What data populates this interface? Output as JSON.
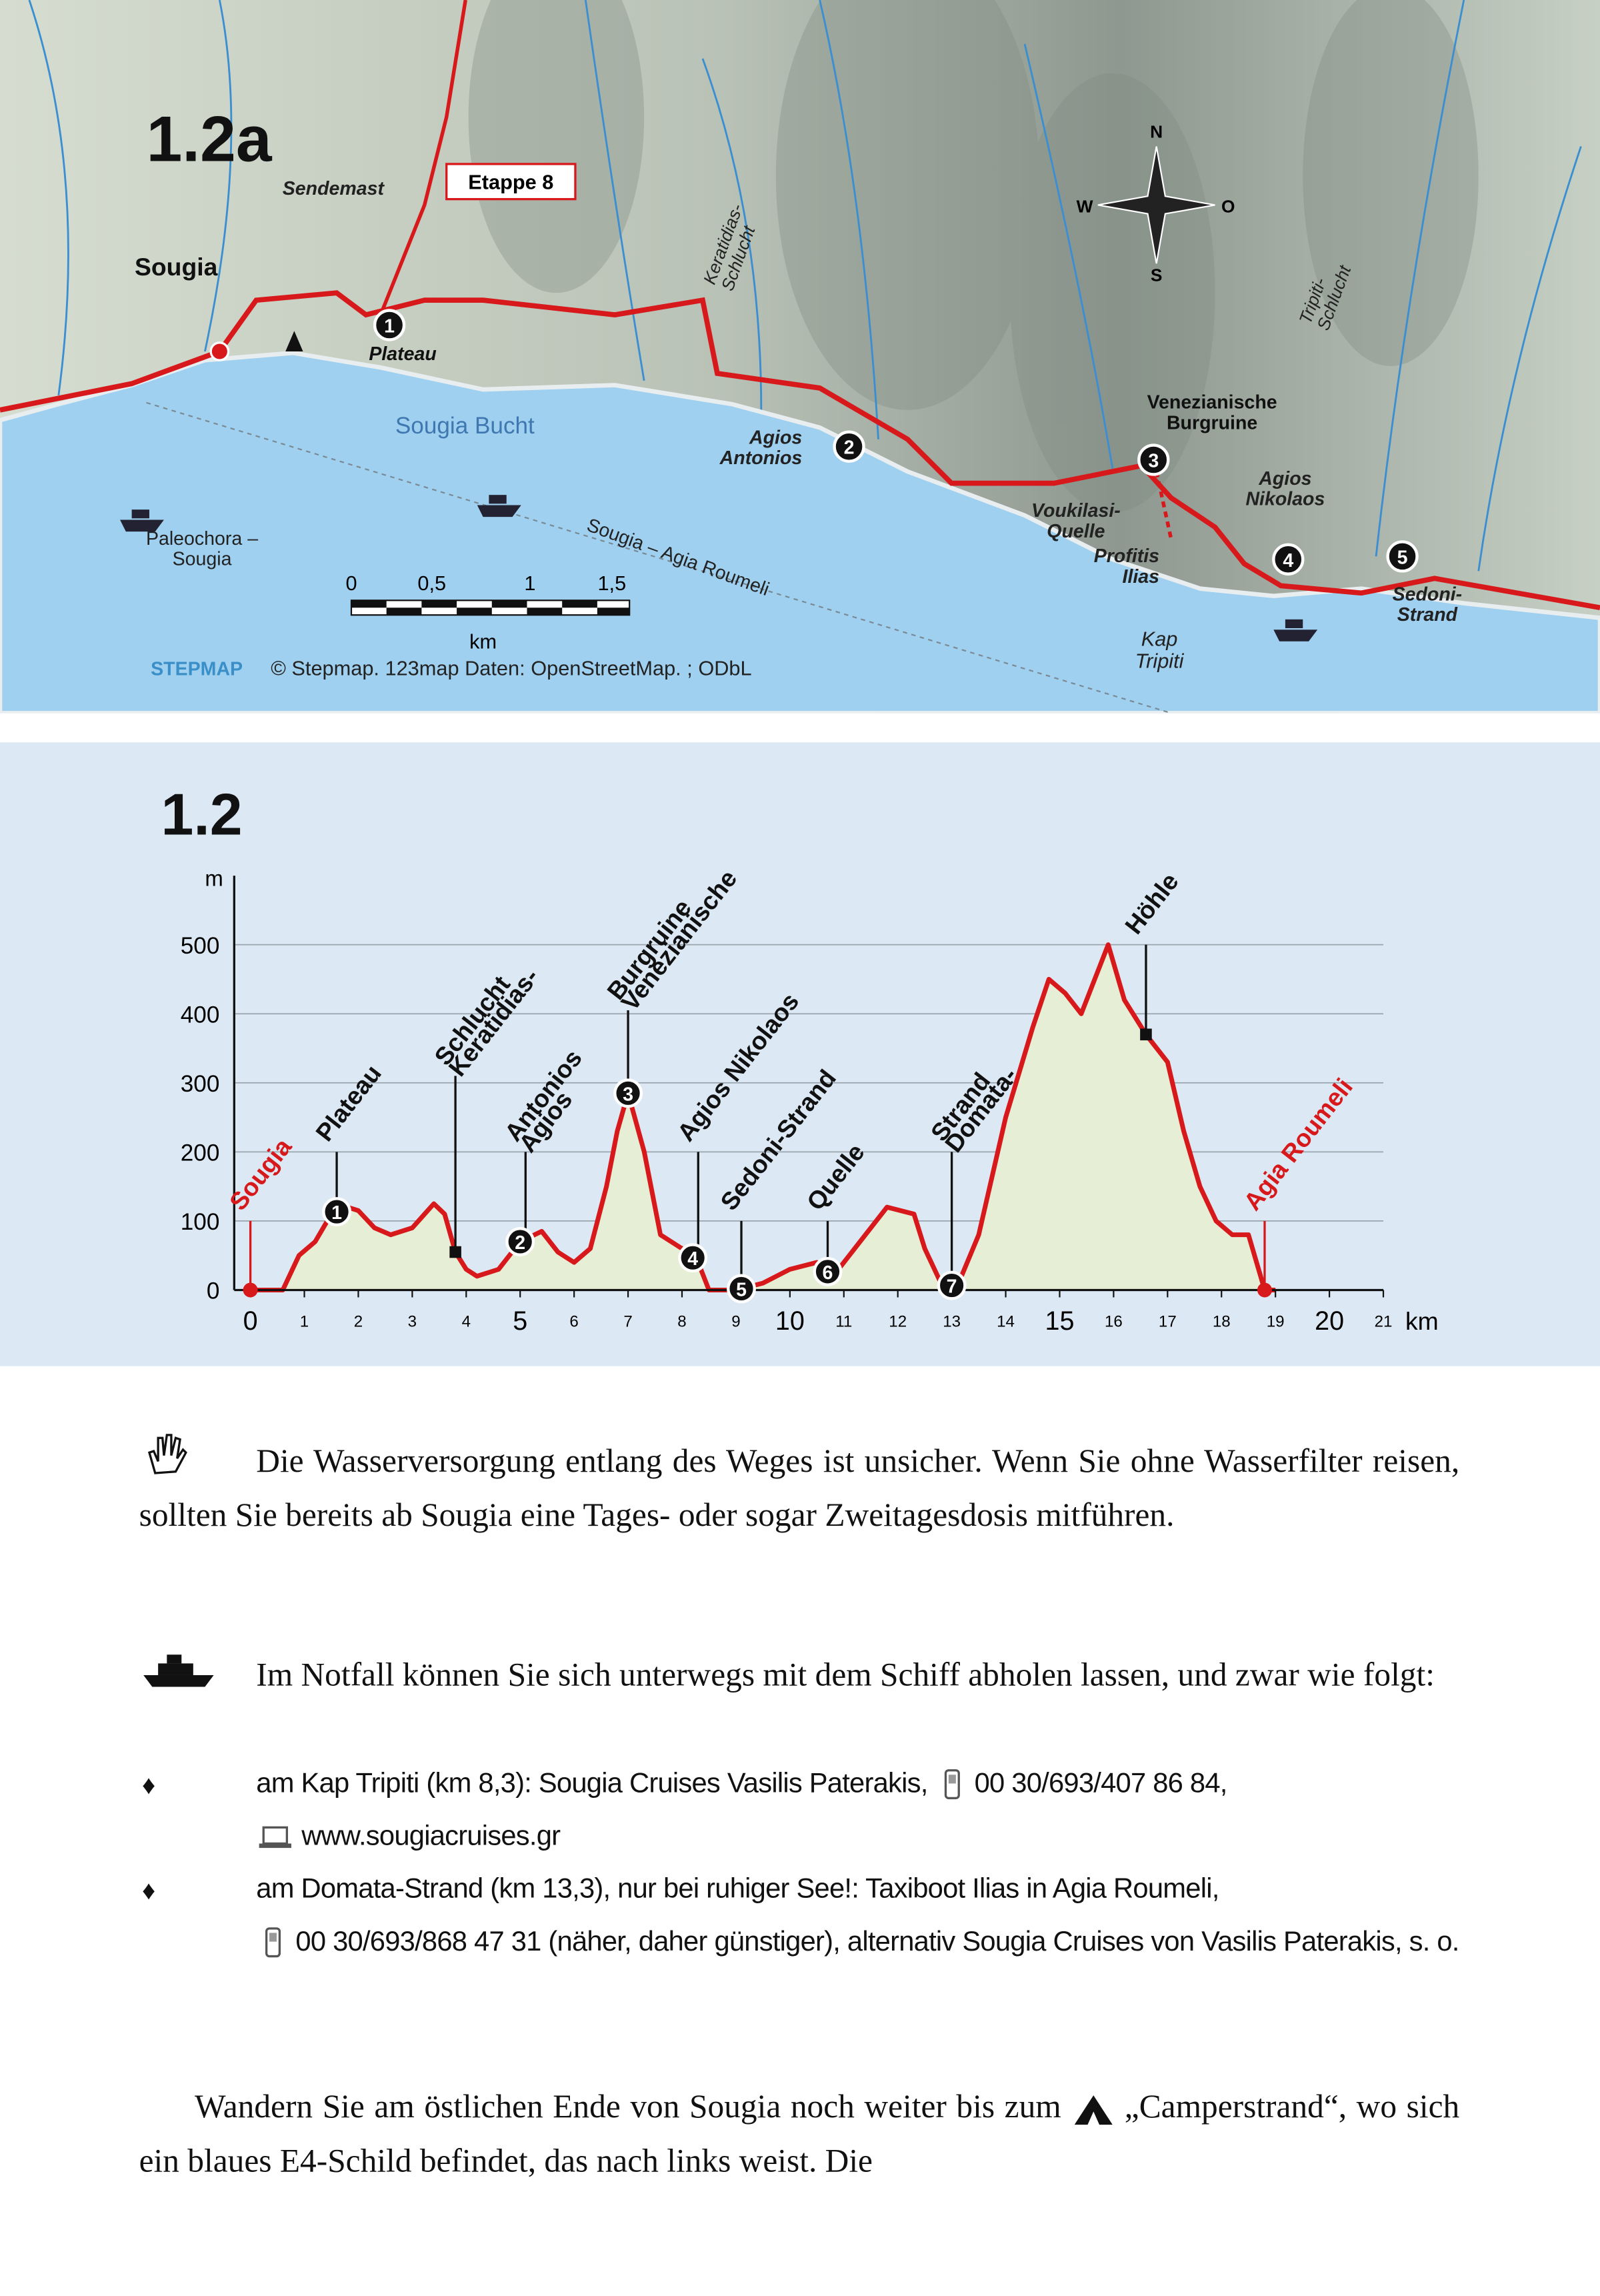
{
  "map": {
    "title": "1.2a",
    "stage": "Etappe 8",
    "labels": [
      [
        "Sendemast"
      ],
      [
        "Sougia"
      ],
      [
        "Plateau"
      ],
      [
        "Sougia Bucht"
      ],
      [
        "Keratidias-",
        "Schlucht"
      ],
      [
        "Agios",
        "Antonios"
      ],
      [
        "Venezianische",
        "Burgruine"
      ],
      [
        "Voukilasi-",
        "Quelle"
      ],
      [
        "Profitis",
        "Ilias"
      ],
      [
        "Agios",
        "Nikolaos"
      ],
      [
        "Kap",
        "Tripiti"
      ],
      [
        "Tripiti-",
        "Schlucht"
      ],
      [
        "Sedoni-",
        "Strand"
      ],
      [
        "Paleochora –",
        "Sougia"
      ],
      [
        "Sougia – Agia Roumeli"
      ]
    ],
    "waypoints": [
      "1",
      "2",
      "3",
      "4",
      "5"
    ],
    "compass": [
      "N",
      "O",
      "S",
      "W"
    ],
    "scale_labels": [
      "0",
      "0,5",
      "1",
      "1,5"
    ],
    "scale_unit": "km",
    "credit_brand": "STEPMAP",
    "credit": "© Stepmap. 123map  Daten: OpenStreetMap. ; ODbL"
  },
  "chart_data": {
    "type": "area",
    "title": "1.2",
    "ylabel": "m",
    "xlabel": "km",
    "color": "#d7191c",
    "fill": "#e6eed5",
    "grid": true,
    "xlim": [
      -0.3,
      21
    ],
    "ylim": [
      0,
      600
    ],
    "xticks": [
      0,
      1,
      2,
      3,
      4,
      5,
      6,
      7,
      8,
      9,
      10,
      11,
      12,
      13,
      14,
      15,
      16,
      17,
      18,
      19,
      20,
      21
    ],
    "yticks": [
      0,
      100,
      200,
      300,
      400,
      500
    ],
    "x": [
      0,
      0.6,
      0.9,
      1.2,
      1.5,
      1.8,
      2.0,
      2.3,
      2.6,
      3.0,
      3.4,
      3.6,
      3.8,
      4.0,
      4.2,
      4.6,
      5.0,
      5.4,
      5.7,
      6.0,
      6.3,
      6.6,
      6.8,
      7.0,
      7.3,
      7.6,
      8.0,
      8.3,
      8.5,
      9.0,
      9.5,
      10.0,
      10.5,
      10.8,
      11.2,
      11.8,
      12.3,
      12.5,
      12.8,
      13.1,
      13.5,
      14.0,
      14.5,
      14.8,
      15.1,
      15.4,
      15.9,
      16.2,
      16.6,
      17.0,
      17.3,
      17.6,
      17.9,
      18.2,
      18.5,
      18.8,
      19.0
    ],
    "values": [
      0,
      0,
      50,
      70,
      110,
      120,
      115,
      90,
      80,
      90,
      125,
      110,
      55,
      30,
      20,
      30,
      70,
      85,
      55,
      40,
      60,
      150,
      230,
      285,
      200,
      80,
      60,
      40,
      0,
      0,
      10,
      30,
      40,
      20,
      60,
      120,
      110,
      60,
      10,
      5,
      80,
      250,
      380,
      450,
      430,
      400,
      500,
      420,
      370,
      330,
      230,
      150,
      100,
      80,
      80,
      0,
      0
    ],
    "annotations": [
      {
        "lines": [
          "Sougia"
        ],
        "x": 0
      },
      {
        "lines": [
          "Plateau"
        ],
        "x": 1.6
      },
      {
        "lines": [
          "Keratidias-",
          "Schlucht"
        ],
        "x": 3.8
      },
      {
        "lines": [
          "Agios",
          "Antonios"
        ],
        "x": 5.1
      },
      {
        "lines": [
          "Venezianische",
          "Burgruine"
        ],
        "x": 7.0
      },
      {
        "lines": [
          "Agios Nikolaos"
        ],
        "x": 8.3
      },
      {
        "lines": [
          "Sedoni-Strand"
        ],
        "x": 9.1
      },
      {
        "lines": [
          "Quelle"
        ],
        "x": 10.7
      },
      {
        "lines": [
          "Domata-",
          "Strand"
        ],
        "x": 13.0
      },
      {
        "lines": [
          "Höhle"
        ],
        "x": 16.6
      },
      {
        "lines": [
          "Agia Roumeli"
        ],
        "x": 18.8
      }
    ],
    "waypoints": [
      {
        "label": "1",
        "x": 1.6
      },
      {
        "label": "2",
        "x": 5.0
      },
      {
        "label": "3",
        "x": 7.0
      },
      {
        "label": "4",
        "x": 8.2
      },
      {
        "label": "5",
        "x": 9.1
      },
      {
        "label": "6",
        "x": 10.7
      },
      {
        "label": "7",
        "x": 13.0
      }
    ]
  },
  "notes": {
    "water": "Die Wasserversorgung entlang des Weges ist unsicher. Wenn Sie ohne Wasserfilter reisen, sollten Sie bereits ab Sougia eine Tages- oder sogar Zweitagesdosis mitführen.",
    "boat_intro": "Im Notfall können Sie sich unterwegs mit dem Schiff abholen lassen, und zwar wie folgt:",
    "options": [
      {
        "text": "am Kap Tripiti (km 8,3): Sougia Cruises Vasilis Paterakis,",
        "phone": "00 30/693/407 86 84,",
        "web": "www.sougiacruises.gr"
      },
      {
        "text": "am Domata-Strand (km 13,3), nur bei ruhiger See!: Taxiboot Ilias in Agia Roumeli,",
        "phone": "00 30/693/868 47 31 (näher, daher günstiger), alternativ Sougia Cruises von Vasilis Paterakis, s. o."
      }
    ],
    "walk_start": "Wandern Sie am östlichen Ende von Sougia noch weiter bis zum",
    "walk_end": "„Camperstrand“, wo sich ein blaues E4-Schild befindet, das nach links weist. Die"
  }
}
